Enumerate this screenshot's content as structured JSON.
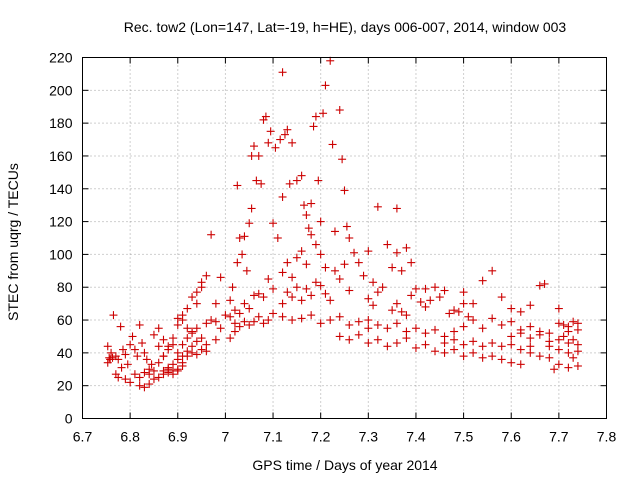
{
  "chart_data": {
    "type": "scatter",
    "title": "Rec. tow2 (Lon=147, Lat=-19, h=HE), days 006-007, 2014, window 003",
    "xlabel": "GPS time / Days of year 2014",
    "ylabel": "STEC from uqrg / TECUs",
    "xlim": [
      6.7,
      7.8
    ],
    "ylim": [
      0,
      220
    ],
    "x_ticks": [
      "6.7",
      "6.8",
      "6.9",
      "7",
      "7.1",
      "7.2",
      "7.3",
      "7.4",
      "7.5",
      "7.6",
      "7.7",
      "7.8"
    ],
    "y_ticks": [
      "0",
      "20",
      "40",
      "60",
      "80",
      "100",
      "120",
      "140",
      "160",
      "180",
      "200",
      "220"
    ],
    "grid": true,
    "marker": "+",
    "color": "#cc0000",
    "series": [
      {
        "points": [
          [
            6.753,
            44
          ],
          [
            6.756,
            37
          ],
          [
            6.76,
            40
          ],
          [
            6.765,
            63
          ],
          [
            6.77,
            38
          ],
          [
            6.775,
            36
          ],
          [
            6.78,
            56
          ],
          [
            6.785,
            42
          ],
          [
            6.79,
            39
          ],
          [
            6.795,
            33
          ],
          [
            6.753,
            34
          ],
          [
            6.758,
            36
          ],
          [
            6.763,
            37
          ],
          [
            6.77,
            27
          ],
          [
            6.775,
            25
          ],
          [
            6.782,
            31
          ],
          [
            6.79,
            24
          ],
          [
            6.8,
            22
          ],
          [
            6.81,
            27
          ],
          [
            6.82,
            25
          ],
          [
            6.8,
            45
          ],
          [
            6.805,
            50
          ],
          [
            6.81,
            42
          ],
          [
            6.815,
            38
          ],
          [
            6.82,
            57
          ],
          [
            6.825,
            46
          ],
          [
            6.83,
            40
          ],
          [
            6.835,
            36
          ],
          [
            6.84,
            30
          ],
          [
            6.845,
            33
          ],
          [
            6.82,
            20
          ],
          [
            6.83,
            19
          ],
          [
            6.84,
            21
          ],
          [
            6.85,
            24
          ],
          [
            6.86,
            25
          ],
          [
            6.87,
            27
          ],
          [
            6.88,
            28
          ],
          [
            6.89,
            27
          ],
          [
            6.9,
            30
          ],
          [
            6.91,
            34
          ],
          [
            6.83,
            28
          ],
          [
            6.84,
            27
          ],
          [
            6.85,
            29
          ],
          [
            6.86,
            34
          ],
          [
            6.87,
            38
          ],
          [
            6.88,
            42
          ],
          [
            6.89,
            45
          ],
          [
            6.9,
            40
          ],
          [
            6.91,
            38
          ],
          [
            6.92,
            41
          ],
          [
            6.85,
            51
          ],
          [
            6.86,
            55
          ],
          [
            6.87,
            48
          ],
          [
            6.88,
            44
          ],
          [
            6.89,
            49
          ],
          [
            6.9,
            57
          ],
          [
            6.91,
            60
          ],
          [
            6.92,
            55
          ],
          [
            6.93,
            52
          ],
          [
            6.94,
            70
          ],
          [
            6.86,
            44
          ],
          [
            6.87,
            38
          ],
          [
            6.88,
            31
          ],
          [
            6.89,
            33
          ],
          [
            6.9,
            36
          ],
          [
            6.91,
            45
          ],
          [
            6.92,
            49
          ],
          [
            6.93,
            44
          ],
          [
            6.94,
            47
          ],
          [
            6.95,
            80
          ],
          [
            6.87,
            29
          ],
          [
            6.88,
            30
          ],
          [
            6.89,
            29
          ],
          [
            6.9,
            29
          ],
          [
            6.91,
            32
          ],
          [
            6.92,
            38
          ],
          [
            6.93,
            40
          ],
          [
            6.94,
            39
          ],
          [
            6.95,
            42
          ],
          [
            6.96,
            45
          ],
          [
            6.9,
            61
          ],
          [
            6.91,
            63
          ],
          [
            6.92,
            67
          ],
          [
            6.93,
            74
          ],
          [
            6.94,
            77
          ],
          [
            6.95,
            83
          ],
          [
            6.96,
            87
          ],
          [
            6.97,
            112
          ],
          [
            6.98,
            70
          ],
          [
            6.99,
            86
          ],
          [
            6.93,
            53
          ],
          [
            6.94,
            55
          ],
          [
            6.95,
            49
          ],
          [
            6.96,
            58
          ],
          [
            6.97,
            60
          ],
          [
            6.98,
            59
          ],
          [
            6.99,
            55
          ],
          [
            7.0,
            63
          ],
          [
            6.96,
            41
          ],
          [
            6.98,
            48
          ],
          [
            7.01,
            72
          ],
          [
            7.015,
            80
          ],
          [
            7.02,
            66
          ],
          [
            7.025,
            95
          ],
          [
            7.03,
            110
          ],
          [
            7.035,
            100
          ],
          [
            7.04,
            111
          ],
          [
            7.045,
            90
          ],
          [
            7.05,
            119
          ],
          [
            7.055,
            128
          ],
          [
            7.01,
            62
          ],
          [
            7.02,
            58
          ],
          [
            7.03,
            64
          ],
          [
            7.04,
            70
          ],
          [
            7.05,
            67
          ],
          [
            7.06,
            75
          ],
          [
            7.07,
            76
          ],
          [
            7.08,
            74
          ],
          [
            7.09,
            85
          ],
          [
            7.1,
            79
          ],
          [
            7.01,
            49
          ],
          [
            7.02,
            53
          ],
          [
            7.03,
            56
          ],
          [
            7.04,
            59
          ],
          [
            7.05,
            57
          ],
          [
            7.06,
            59
          ],
          [
            7.07,
            62
          ],
          [
            7.08,
            58
          ],
          [
            7.09,
            60
          ],
          [
            7.1,
            64
          ],
          [
            7.025,
            142
          ],
          [
            7.055,
            160
          ],
          [
            7.06,
            166
          ],
          [
            7.065,
            145
          ],
          [
            7.07,
            160
          ],
          [
            7.075,
            143
          ],
          [
            7.08,
            182
          ],
          [
            7.085,
            184
          ],
          [
            7.09,
            168
          ],
          [
            7.095,
            175
          ],
          [
            7.1,
            119
          ],
          [
            7.105,
            165
          ],
          [
            7.11,
            110
          ],
          [
            7.115,
            170
          ],
          [
            7.12,
            135
          ],
          [
            7.125,
            173
          ],
          [
            7.13,
            176
          ],
          [
            7.135,
            143
          ],
          [
            7.14,
            168
          ],
          [
            7.15,
            145
          ],
          [
            7.12,
            211
          ],
          [
            7.16,
            148
          ],
          [
            7.165,
            130
          ],
          [
            7.17,
            124
          ],
          [
            7.175,
            116
          ],
          [
            7.18,
            131
          ],
          [
            7.185,
            178
          ],
          [
            7.19,
            184
          ],
          [
            7.195,
            145
          ],
          [
            7.2,
            120
          ],
          [
            7.205,
            186
          ],
          [
            7.21,
            203
          ],
          [
            7.22,
            218
          ],
          [
            7.225,
            167
          ],
          [
            7.23,
            114
          ],
          [
            7.24,
            188
          ],
          [
            7.245,
            158
          ],
          [
            7.25,
            139
          ],
          [
            7.255,
            117
          ],
          [
            7.26,
            110
          ],
          [
            7.12,
            89
          ],
          [
            7.13,
            95
          ],
          [
            7.14,
            86
          ],
          [
            7.15,
            98
          ],
          [
            7.16,
            102
          ],
          [
            7.17,
            94
          ],
          [
            7.18,
            112
          ],
          [
            7.19,
            106
          ],
          [
            7.2,
            100
          ],
          [
            7.21,
            92
          ],
          [
            7.12,
            70
          ],
          [
            7.13,
            77
          ],
          [
            7.14,
            74
          ],
          [
            7.15,
            80
          ],
          [
            7.16,
            72
          ],
          [
            7.17,
            79
          ],
          [
            7.18,
            75
          ],
          [
            7.19,
            83
          ],
          [
            7.2,
            81
          ],
          [
            7.21,
            76
          ],
          [
            7.12,
            62
          ],
          [
            7.14,
            60
          ],
          [
            7.16,
            61
          ],
          [
            7.18,
            63
          ],
          [
            7.2,
            58
          ],
          [
            7.22,
            60
          ],
          [
            7.24,
            62
          ],
          [
            7.26,
            57
          ],
          [
            7.28,
            59
          ],
          [
            7.3,
            55
          ],
          [
            7.22,
            72
          ],
          [
            7.23,
            90
          ],
          [
            7.24,
            85
          ],
          [
            7.25,
            94
          ],
          [
            7.26,
            78
          ],
          [
            7.27,
            101
          ],
          [
            7.28,
            95
          ],
          [
            7.29,
            87
          ],
          [
            7.3,
            102
          ],
          [
            7.31,
            83
          ],
          [
            7.3,
            73
          ],
          [
            7.31,
            69
          ],
          [
            7.32,
            77
          ],
          [
            7.33,
            80
          ],
          [
            7.34,
            106
          ],
          [
            7.35,
            92
          ],
          [
            7.36,
            101
          ],
          [
            7.37,
            90
          ],
          [
            7.38,
            104
          ],
          [
            7.39,
            95
          ],
          [
            7.32,
            129
          ],
          [
            7.36,
            128
          ],
          [
            7.35,
            66
          ],
          [
            7.36,
            70
          ],
          [
            7.37,
            65
          ],
          [
            7.38,
            63
          ],
          [
            7.39,
            75
          ],
          [
            7.4,
            79
          ],
          [
            7.41,
            71
          ],
          [
            7.42,
            68
          ],
          [
            7.24,
            50
          ],
          [
            7.26,
            48
          ],
          [
            7.28,
            51
          ],
          [
            7.3,
            46
          ],
          [
            7.32,
            48
          ],
          [
            7.34,
            44
          ],
          [
            7.36,
            46
          ],
          [
            7.38,
            49
          ],
          [
            7.4,
            43
          ],
          [
            7.42,
            45
          ],
          [
            7.3,
            60
          ],
          [
            7.32,
            57
          ],
          [
            7.34,
            55
          ],
          [
            7.36,
            58
          ],
          [
            7.38,
            53
          ],
          [
            7.4,
            55
          ],
          [
            7.42,
            52
          ],
          [
            7.44,
            54
          ],
          [
            7.46,
            50
          ],
          [
            7.48,
            53
          ],
          [
            7.42,
            79
          ],
          [
            7.43,
            72
          ],
          [
            7.44,
            80
          ],
          [
            7.45,
            74
          ],
          [
            7.46,
            78
          ],
          [
            7.47,
            64
          ],
          [
            7.48,
            66
          ],
          [
            7.49,
            65
          ],
          [
            7.5,
            70
          ],
          [
            7.51,
            62
          ],
          [
            7.44,
            41
          ],
          [
            7.46,
            40
          ],
          [
            7.48,
            42
          ],
          [
            7.5,
            38
          ],
          [
            7.52,
            40
          ],
          [
            7.54,
            37
          ],
          [
            7.56,
            38
          ],
          [
            7.58,
            36
          ],
          [
            7.6,
            34
          ],
          [
            7.62,
            33
          ],
          [
            7.46,
            46
          ],
          [
            7.48,
            48
          ],
          [
            7.5,
            45
          ],
          [
            7.52,
            47
          ],
          [
            7.54,
            44
          ],
          [
            7.56,
            46
          ],
          [
            7.58,
            44
          ],
          [
            7.6,
            45
          ],
          [
            7.62,
            42
          ],
          [
            7.64,
            44
          ],
          [
            7.5,
            56
          ],
          [
            7.52,
            60
          ],
          [
            7.54,
            55
          ],
          [
            7.56,
            61
          ],
          [
            7.58,
            57
          ],
          [
            7.6,
            59
          ],
          [
            7.62,
            54
          ],
          [
            7.64,
            56
          ],
          [
            7.66,
            53
          ],
          [
            7.68,
            52
          ],
          [
            7.5,
            77
          ],
          [
            7.52,
            70
          ],
          [
            7.54,
            84
          ],
          [
            7.56,
            90
          ],
          [
            7.58,
            74
          ],
          [
            7.6,
            67
          ],
          [
            7.62,
            65
          ],
          [
            7.64,
            69
          ],
          [
            7.66,
            81
          ],
          [
            7.67,
            82
          ],
          [
            7.6,
            50
          ],
          [
            7.62,
            52
          ],
          [
            7.64,
            49
          ],
          [
            7.66,
            51
          ],
          [
            7.68,
            47
          ],
          [
            7.7,
            48
          ],
          [
            7.72,
            46
          ],
          [
            7.74,
            45
          ],
          [
            7.7,
            58
          ],
          [
            7.72,
            56
          ],
          [
            7.64,
            40
          ],
          [
            7.66,
            38
          ],
          [
            7.68,
            37
          ],
          [
            7.7,
            33
          ],
          [
            7.72,
            31
          ],
          [
            7.74,
            32
          ],
          [
            7.7,
            42
          ],
          [
            7.72,
            40
          ],
          [
            7.74,
            41
          ],
          [
            7.68,
            44
          ],
          [
            7.7,
            67
          ],
          [
            7.71,
            57
          ],
          [
            7.72,
            53
          ],
          [
            7.73,
            59
          ],
          [
            7.74,
            58
          ],
          [
            7.71,
            50
          ],
          [
            7.73,
            48
          ],
          [
            7.74,
            54
          ],
          [
            7.69,
            30
          ],
          [
            7.73,
            37
          ]
        ]
      }
    ]
  }
}
